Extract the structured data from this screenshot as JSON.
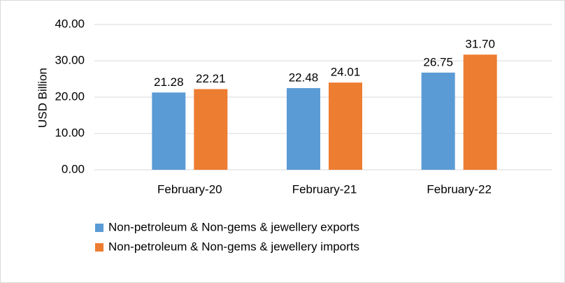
{
  "chart_data": {
    "type": "bar",
    "y_axis_label": "USD Billion",
    "categories": [
      "February-20",
      "February-21",
      "February-22"
    ],
    "series": [
      {
        "name": "Non-petroleum & Non-gems & jewellery exports",
        "color": "#5b9bd5",
        "values": [
          21.28,
          22.48,
          26.75
        ],
        "value_labels": [
          "21.28",
          "22.48",
          "26.75"
        ]
      },
      {
        "name": "Non-petroleum & Non-gems & jewellery imports",
        "color": "#ed7d31",
        "values": [
          22.21,
          24.01,
          31.7
        ],
        "value_labels": [
          "22.21",
          "24.01",
          "31.70"
        ]
      }
    ],
    "ylim": [
      0,
      40
    ],
    "yticks": [
      {
        "value": 0,
        "label": "0.00"
      },
      {
        "value": 10,
        "label": "10.00"
      },
      {
        "value": 20,
        "label": "20.00"
      },
      {
        "value": 30,
        "label": "30.00"
      },
      {
        "value": 40,
        "label": "40.00"
      }
    ],
    "grid": true
  }
}
